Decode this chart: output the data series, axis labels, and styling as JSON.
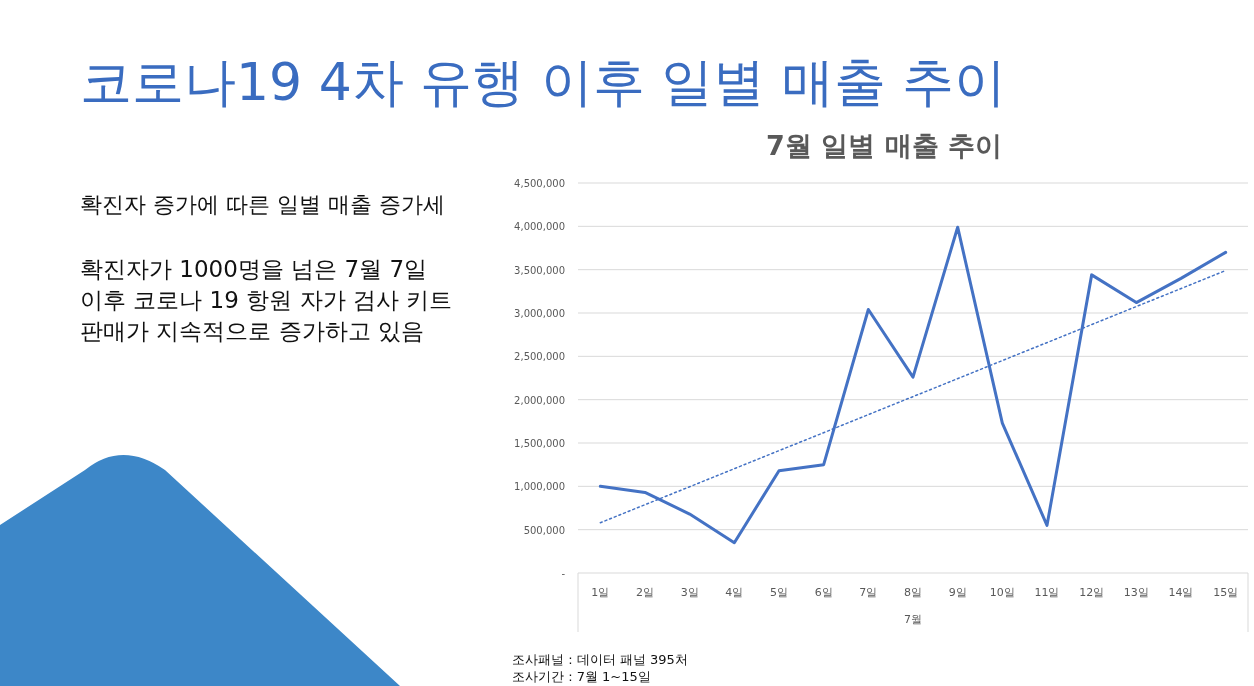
{
  "chart_data": {
    "type": "line",
    "title": "코로나19 4차 유행 이후 일별 매출 추이",
    "subtitle": "7월 일별 매출 추이",
    "xlabel": "7월",
    "annotations": [
      "확진자 증가에 따른 일별 매출 증가세",
      "확진자가 1000명을 넘은 7월 7일",
      "이후 코로나 19 항원 자가 검사 키트",
      "판매가 지속적으로 증가하고 있음",
      "조사패널 : 데이터 패널 395처",
      "조사기간 : 7월 1~15일"
    ],
    "categories": [
      "1일",
      "2일",
      "3일",
      "4일",
      "5일",
      "6일",
      "7일",
      "8일",
      "9일",
      "10일",
      "11일",
      "12일",
      "13일",
      "14일",
      "15일"
    ],
    "series": [
      {
        "color": "#4472c4",
        "line_style": "solid",
        "values": [
          1000000,
          930000,
          680000,
          350000,
          1180000,
          1250000,
          3040000,
          2260000,
          3990000,
          1730000,
          550000,
          3440000,
          3120000,
          3400000,
          3700000
        ]
      },
      {
        "color": "#4472c4",
        "line_style": "dotted",
        "x": [
          "1일",
          "15일"
        ],
        "values": [
          580000,
          3490000
        ]
      }
    ],
    "ylim": [
      0,
      4500000
    ],
    "yticks": [
      {
        "value": 0,
        "label": "-"
      },
      {
        "value": 500000,
        "label": "500,000"
      },
      {
        "value": 1000000,
        "label": "1,000,000"
      },
      {
        "value": 1500000,
        "label": "1,500,000"
      },
      {
        "value": 2000000,
        "label": "2,000,000"
      },
      {
        "value": 2500000,
        "label": "2,500,000"
      },
      {
        "value": 3000000,
        "label": "3,000,000"
      },
      {
        "value": 3500000,
        "label": "3,500,000"
      },
      {
        "value": 4000000,
        "label": "4,000,000"
      },
      {
        "value": 4500000,
        "label": "4,500,000"
      }
    ],
    "grid": "y",
    "marker": "none"
  }
}
